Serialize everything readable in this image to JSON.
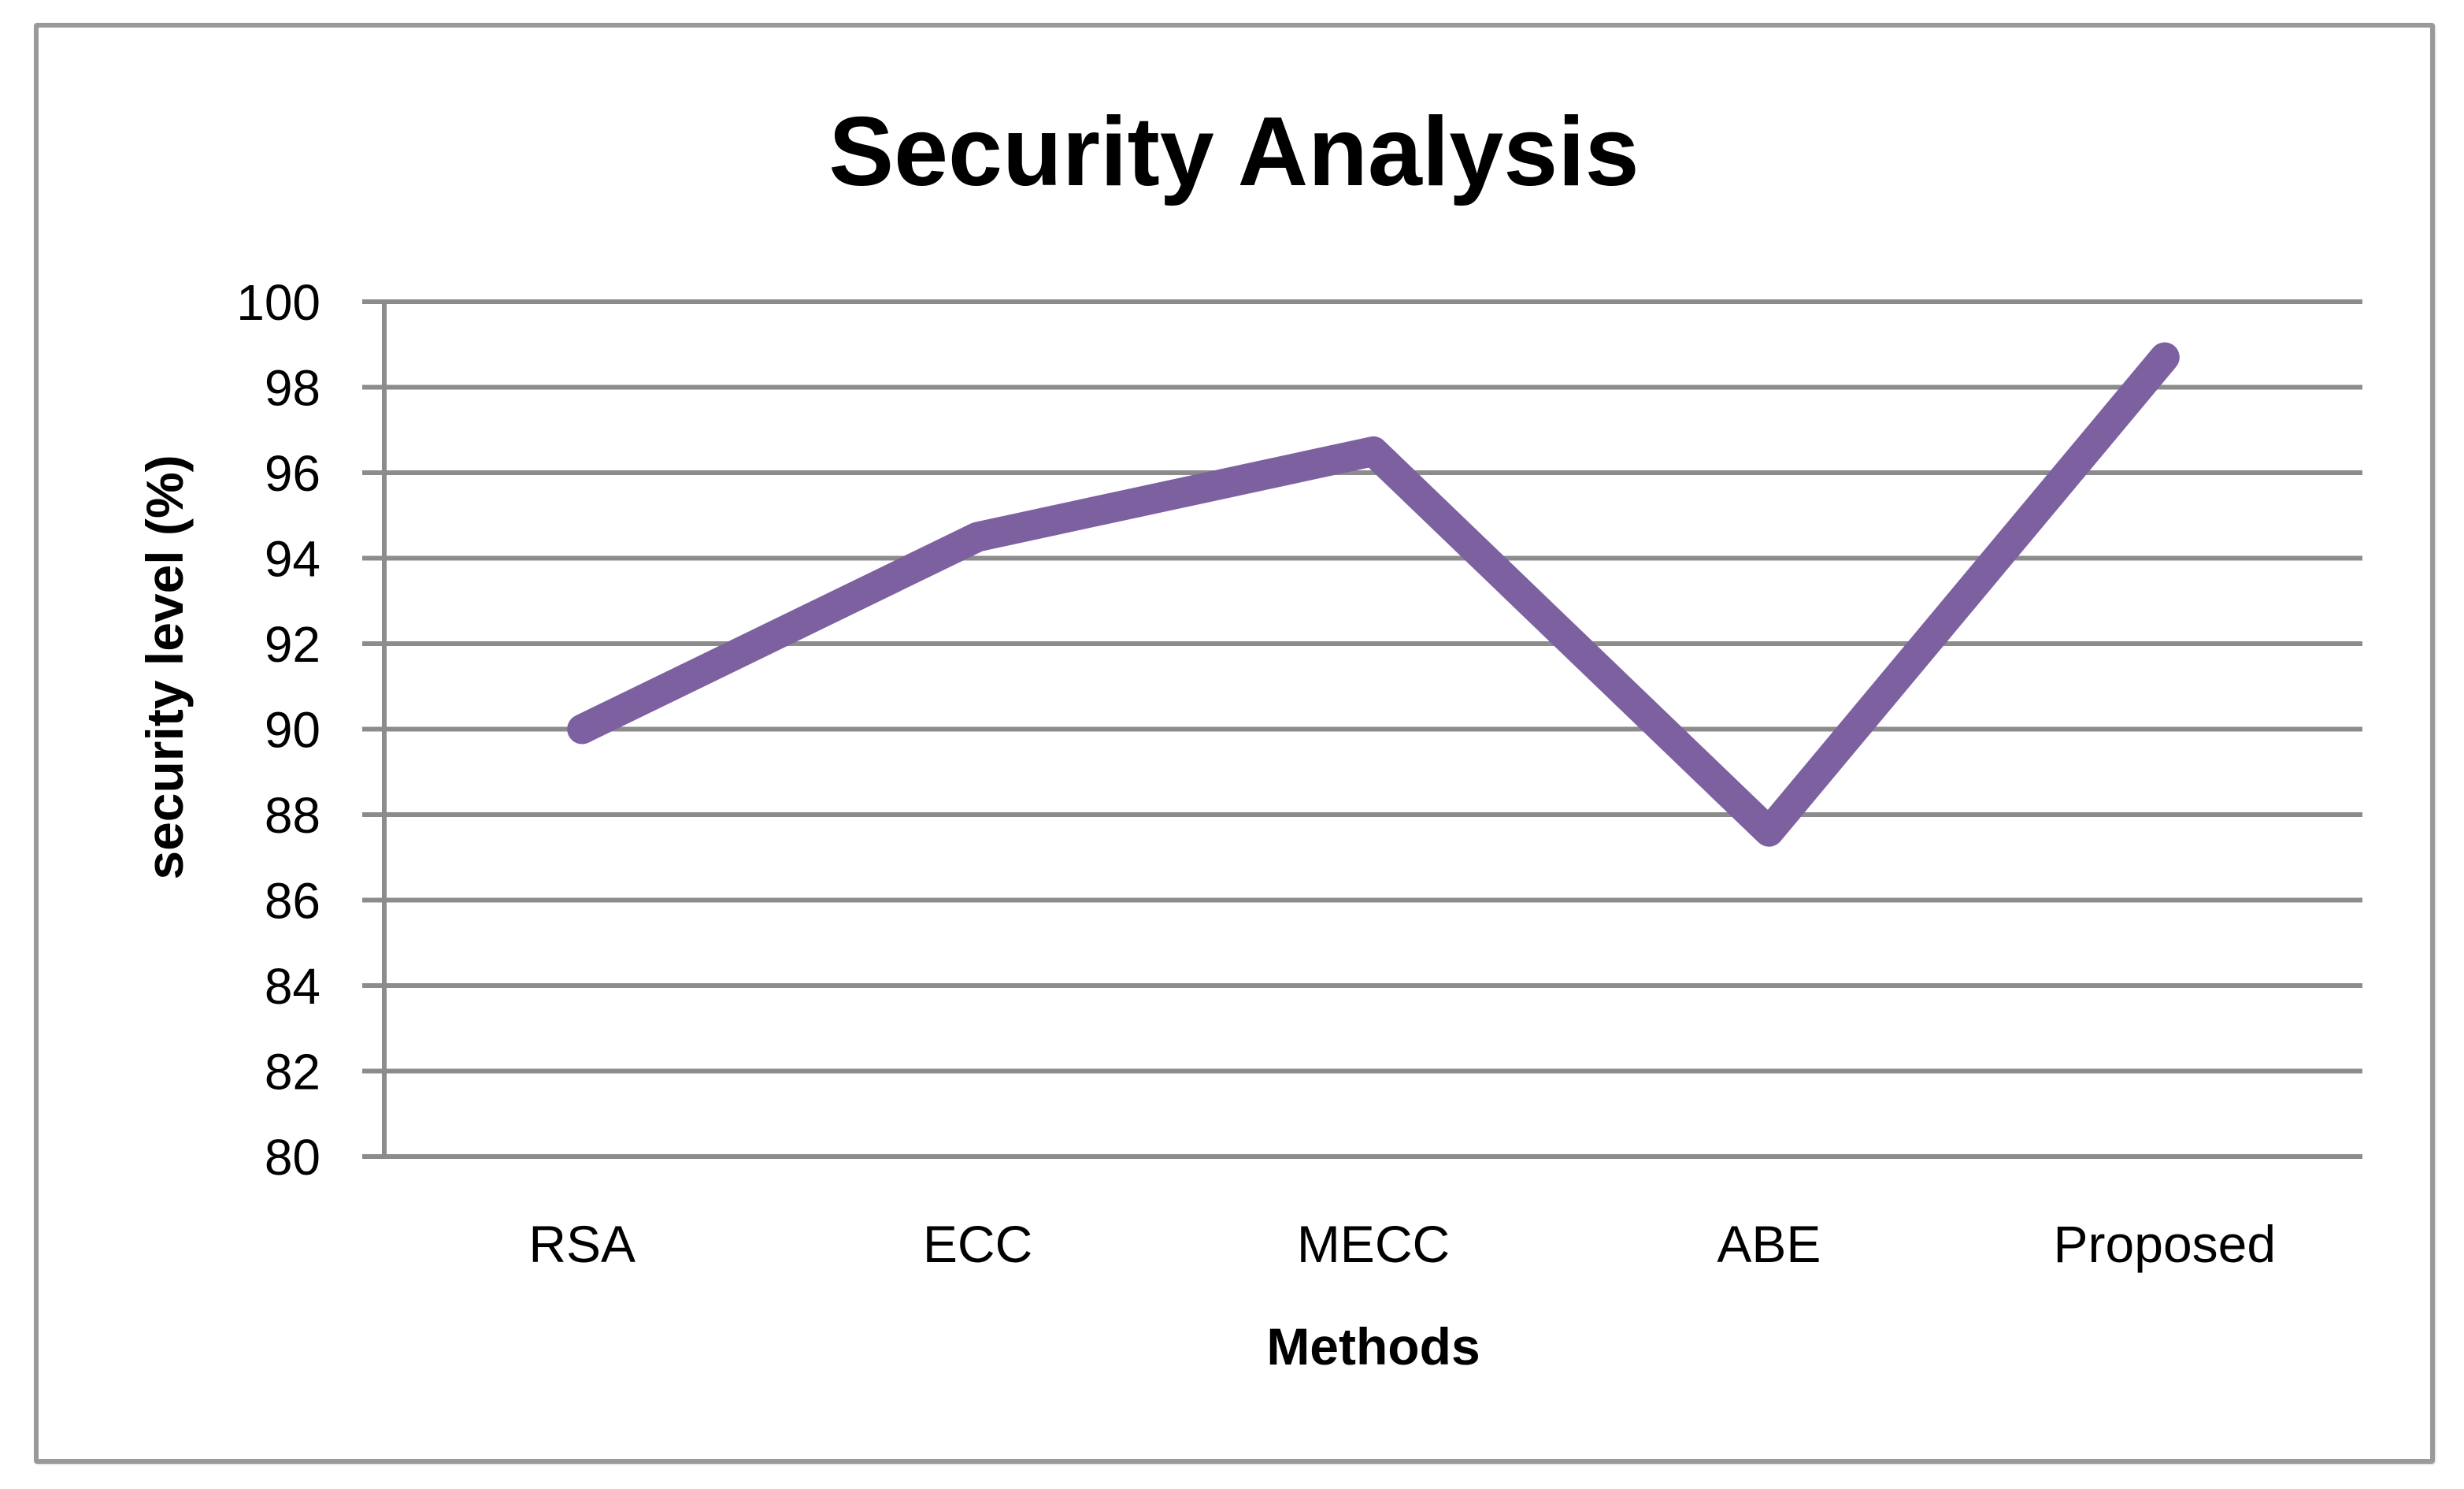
{
  "chart_data": {
    "type": "line",
    "title": "Security Analysis",
    "xlabel": "Methods",
    "ylabel": "security level (%)",
    "categories": [
      "RSA",
      "ECC",
      "MECC",
      "ABE",
      "Proposed"
    ],
    "series": [
      {
        "name": "security level (%)",
        "values": [
          90.0,
          94.5,
          96.5,
          87.6,
          98.7
        ],
        "color": "#7d60a0"
      }
    ],
    "ylim": [
      80,
      100
    ],
    "yticks": [
      80,
      82,
      84,
      86,
      88,
      90,
      92,
      94,
      96,
      98,
      100
    ],
    "ytick_labels": [
      "80",
      "82",
      "84",
      "86",
      "88",
      "90",
      "92",
      "94",
      "96",
      "98",
      "100"
    ],
    "grid": true,
    "legend": null
  },
  "colors": {
    "line": "#7d60a0",
    "grid": "#8c8c8c",
    "frame": "#9a9a9a",
    "text": "#000000"
  }
}
